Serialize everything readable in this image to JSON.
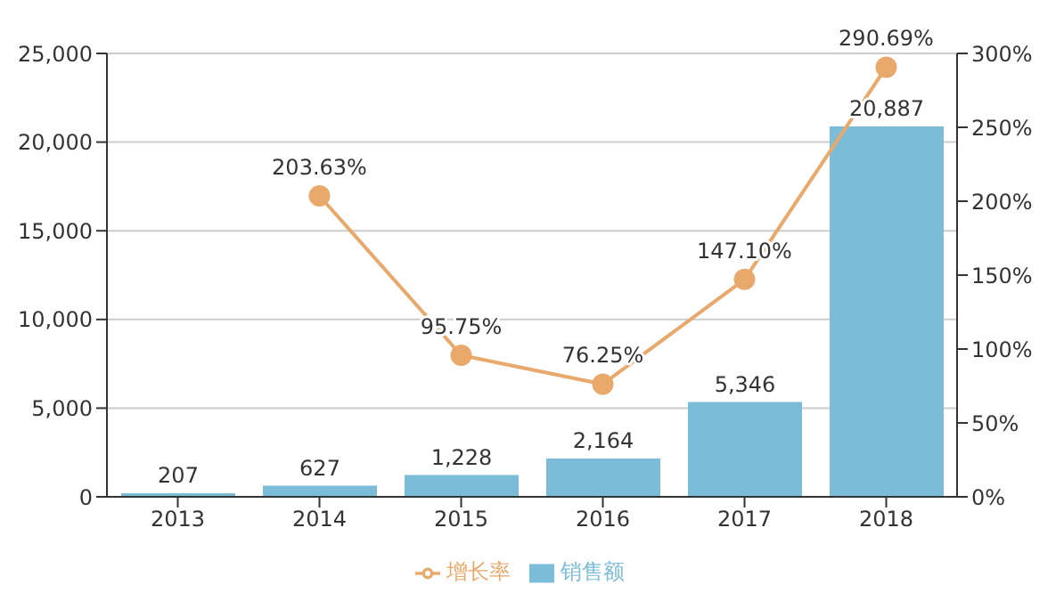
{
  "chart_data": {
    "type": "bar",
    "categories": [
      "2013",
      "2014",
      "2015",
      "2016",
      "2017",
      "2018"
    ],
    "series": [
      {
        "name": "销售额",
        "color": "#7bbcd9",
        "values": [
          207,
          627,
          1228,
          2164,
          5346,
          20887
        ],
        "value_labels": [
          "207",
          "627",
          "1,228",
          "2,164",
          "5,346",
          "20,887"
        ]
      },
      {
        "name": "增长率",
        "type": "line",
        "axis": "y2",
        "color": "#e8a96b",
        "marker": "circle",
        "values": [
          null,
          203.63,
          95.75,
          76.25,
          147.1,
          290.69
        ],
        "value_labels": [
          null,
          "203.63%",
          "95.75%",
          "76.25%",
          "147.10%",
          "290.69%"
        ]
      }
    ],
    "ylim": [
      0,
      25000
    ],
    "yticks": [
      0,
      {
        "value": 5000,
        "label": "5,000"
      },
      {
        "value": 10000,
        "label": "10,000"
      },
      {
        "value": 15000,
        "label": "15,000"
      },
      {
        "value": 20000,
        "label": "20,000"
      },
      {
        "value": 25000,
        "label": "25,000"
      }
    ],
    "y2lim": [
      0,
      300
    ],
    "y2ticks": [
      {
        "value": 0,
        "label": "0%"
      },
      {
        "value": 50,
        "label": "50%"
      },
      {
        "value": 100,
        "label": "100%"
      },
      {
        "value": 150,
        "label": "150%"
      },
      {
        "value": 200,
        "label": "200%"
      },
      {
        "value": 250,
        "label": "250%"
      },
      {
        "value": 300,
        "label": "300%"
      }
    ],
    "grid": "y",
    "legend": "bottom"
  }
}
